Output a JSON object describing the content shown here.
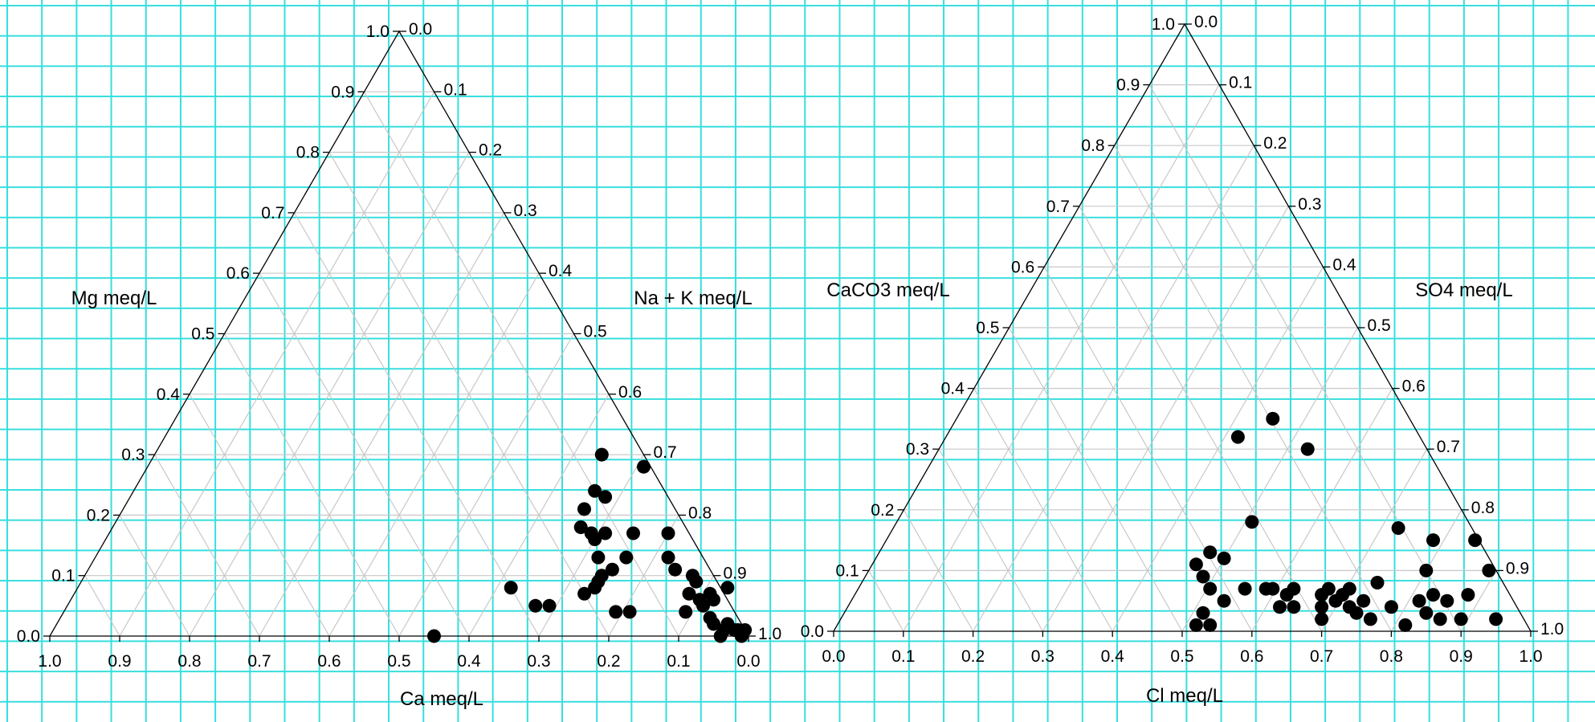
{
  "chart_data": [
    {
      "type": "scatter",
      "subtype": "ternary",
      "axes": {
        "bottom": {
          "label": "Ca meq/L",
          "ticks": [
            "1.0",
            "0.9",
            "0.8",
            "0.7",
            "0.6",
            "0.5",
            "0.4",
            "0.3",
            "0.2",
            "0.1",
            "0.0"
          ]
        },
        "left": {
          "label": "Mg meq/L",
          "ticks": [
            "0.0",
            "0.1",
            "0.2",
            "0.3",
            "0.4",
            "0.5",
            "0.6",
            "0.7",
            "0.8",
            "0.9",
            "1.0"
          ]
        },
        "right": {
          "label": "Na + K meq/L",
          "ticks": [
            "0.0",
            "0.1",
            "0.2",
            "0.3",
            "0.4",
            "0.5",
            "0.6",
            "0.7",
            "0.8",
            "0.9",
            "1.0"
          ]
        }
      },
      "components": [
        "Ca",
        "Mg",
        "NaK"
      ],
      "grid": true,
      "points": [
        {
          "NaK": 0.71,
          "Mg": 0.28
        },
        {
          "NaK": 0.64,
          "Mg": 0.3
        },
        {
          "NaK": 0.66,
          "Mg": 0.24
        },
        {
          "NaK": 0.68,
          "Mg": 0.23
        },
        {
          "NaK": 0.66,
          "Mg": 0.21
        },
        {
          "NaK": 0.71,
          "Mg": 0.17
        },
        {
          "NaK": 0.74,
          "Mg": 0.1
        },
        {
          "NaK": 0.7,
          "Mg": 0.16
        },
        {
          "NaK": 0.69,
          "Mg": 0.17
        },
        {
          "NaK": 0.67,
          "Mg": 0.18
        },
        {
          "NaK": 0.76,
          "Mg": 0.13
        },
        {
          "NaK": 0.74,
          "Mg": 0.08
        },
        {
          "NaK": 0.69,
          "Mg": 0.17
        },
        {
          "NaK": 0.62,
          "Mg": 0.08
        },
        {
          "NaK": 0.67,
          "Mg": 0.05
        },
        {
          "NaK": 0.75,
          "Mg": 0.17
        },
        {
          "NaK": 0.72,
          "Mg": 0.13
        },
        {
          "NaK": 0.75,
          "Mg": 0.11
        },
        {
          "NaK": 0.74,
          "Mg": 0.09
        },
        {
          "NaK": 0.69,
          "Mg": 0.05
        },
        {
          "NaK": 0.73,
          "Mg": 0.07
        },
        {
          "NaK": 0.82,
          "Mg": 0.13
        },
        {
          "NaK": 0.8,
          "Mg": 0.17
        },
        {
          "NaK": 0.84,
          "Mg": 0.11
        },
        {
          "NaK": 0.79,
          "Mg": 0.04
        },
        {
          "NaK": 0.81,
          "Mg": 0.04
        },
        {
          "NaK": 0.88,
          "Mg": 0.07
        },
        {
          "NaK": 0.88,
          "Mg": 0.09
        },
        {
          "NaK": 0.87,
          "Mg": 0.1
        },
        {
          "NaK": 0.9,
          "Mg": 0.06
        },
        {
          "NaK": 0.91,
          "Mg": 0.07
        },
        {
          "NaK": 0.91,
          "Mg": 0.05
        },
        {
          "NaK": 0.89,
          "Mg": 0.04
        },
        {
          "NaK": 0.92,
          "Mg": 0.06
        },
        {
          "NaK": 0.94,
          "Mg": 0.02
        },
        {
          "NaK": 0.93,
          "Mg": 0.08
        },
        {
          "NaK": 0.93,
          "Mg": 0.03
        },
        {
          "NaK": 0.96,
          "Mg": 0.02
        },
        {
          "NaK": 0.98,
          "Mg": 0.01
        },
        {
          "NaK": 0.96,
          "Mg": 0.01
        },
        {
          "NaK": 0.96,
          "Mg": 0.0
        },
        {
          "NaK": 0.975,
          "Mg": 0.01
        },
        {
          "NaK": 0.99,
          "Mg": 0.0
        },
        {
          "NaK": 0.99,
          "Mg": 0.01
        },
        {
          "NaK": 0.55,
          "Mg": 0.0
        }
      ]
    },
    {
      "type": "scatter",
      "subtype": "ternary",
      "axes": {
        "bottom": {
          "label": "Cl meq/L",
          "ticks": [
            "0.0",
            "0.1",
            "0.2",
            "0.3",
            "0.4",
            "0.5",
            "0.6",
            "0.7",
            "0.8",
            "0.9",
            "1.0"
          ]
        },
        "left": {
          "label": "CaCO3 meq/L",
          "ticks": [
            "1.0",
            "0.9",
            "0.8",
            "0.7",
            "0.6",
            "0.5",
            "0.4",
            "0.3",
            "0.2",
            "0.1",
            "0.0"
          ]
        },
        "right": {
          "label": "SO4 meq/L",
          "ticks": [
            "0.0",
            "0.1",
            "0.2",
            "0.3",
            "0.4",
            "0.5",
            "0.6",
            "0.7",
            "0.8",
            "0.9",
            "1.0"
          ]
        }
      },
      "components": [
        "CaCO3",
        "SO4",
        "Cl"
      ],
      "grid": true,
      "points": [
        {
          "Cl": 0.58,
          "SO4": 0.32
        },
        {
          "Cl": 0.63,
          "SO4": 0.35
        },
        {
          "Cl": 0.68,
          "SO4": 0.3
        },
        {
          "Cl": 0.6,
          "SO4": 0.18
        },
        {
          "Cl": 0.81,
          "SO4": 0.17
        },
        {
          "Cl": 0.86,
          "SO4": 0.15
        },
        {
          "Cl": 0.85,
          "SO4": 0.1
        },
        {
          "Cl": 0.91,
          "SO4": 0.06
        },
        {
          "Cl": 0.94,
          "SO4": 0.1
        },
        {
          "Cl": 0.92,
          "SO4": 0.15
        },
        {
          "Cl": 0.56,
          "SO4": 0.12
        },
        {
          "Cl": 0.54,
          "SO4": 0.13
        },
        {
          "Cl": 0.52,
          "SO4": 0.11
        },
        {
          "Cl": 0.53,
          "SO4": 0.09
        },
        {
          "Cl": 0.54,
          "SO4": 0.07
        },
        {
          "Cl": 0.53,
          "SO4": 0.03
        },
        {
          "Cl": 0.52,
          "SO4": 0.01
        },
        {
          "Cl": 0.54,
          "SO4": 0.01
        },
        {
          "Cl": 0.62,
          "SO4": 0.07
        },
        {
          "Cl": 0.63,
          "SO4": 0.07
        },
        {
          "Cl": 0.65,
          "SO4": 0.06
        },
        {
          "Cl": 0.64,
          "SO4": 0.04
        },
        {
          "Cl": 0.66,
          "SO4": 0.07
        },
        {
          "Cl": 0.66,
          "SO4": 0.04
        },
        {
          "Cl": 0.7,
          "SO4": 0.06
        },
        {
          "Cl": 0.7,
          "SO4": 0.02
        },
        {
          "Cl": 0.72,
          "SO4": 0.05
        },
        {
          "Cl": 0.73,
          "SO4": 0.06
        },
        {
          "Cl": 0.71,
          "SO4": 0.07
        },
        {
          "Cl": 0.74,
          "SO4": 0.04
        },
        {
          "Cl": 0.74,
          "SO4": 0.07
        },
        {
          "Cl": 0.75,
          "SO4": 0.03
        },
        {
          "Cl": 0.77,
          "SO4": 0.02
        },
        {
          "Cl": 0.78,
          "SO4": 0.08
        },
        {
          "Cl": 0.8,
          "SO4": 0.04
        },
        {
          "Cl": 0.82,
          "SO4": 0.01
        },
        {
          "Cl": 0.85,
          "SO4": 0.03
        },
        {
          "Cl": 0.86,
          "SO4": 0.06
        },
        {
          "Cl": 0.87,
          "SO4": 0.02
        },
        {
          "Cl": 0.88,
          "SO4": 0.05
        },
        {
          "Cl": 0.9,
          "SO4": 0.02
        },
        {
          "Cl": 0.95,
          "SO4": 0.02
        },
        {
          "Cl": 0.56,
          "SO4": 0.05
        },
        {
          "Cl": 0.76,
          "SO4": 0.05
        },
        {
          "Cl": 0.84,
          "SO4": 0.05
        },
        {
          "Cl": 0.7,
          "SO4": 0.04
        },
        {
          "Cl": 0.59,
          "SO4": 0.07
        }
      ]
    }
  ]
}
